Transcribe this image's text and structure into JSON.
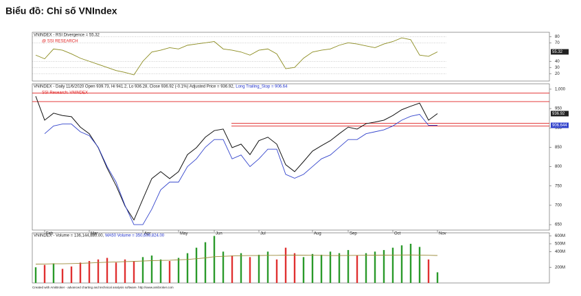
{
  "title": "Biểu đồ: Chỉ số VNIndex",
  "footer": "Created with AmiBroker - advanced charting and technical analysis software. http://www.amibroker.com",
  "chart_data": [
    {
      "type": "line",
      "title": "VNINDEX - RSI Divergence = 55.32",
      "annotation": "@ SSI RESEARCH",
      "series": [
        {
          "color": "#8b8b1e",
          "values": [
            50,
            44,
            60,
            58,
            52,
            45,
            40,
            35,
            30,
            25,
            22,
            18,
            40,
            55,
            58,
            62,
            60,
            66,
            68,
            70,
            72,
            60,
            58,
            55,
            50,
            58,
            60,
            52,
            28,
            30,
            45,
            55,
            58,
            60,
            66,
            70,
            68,
            65,
            62,
            68,
            72,
            78,
            75,
            50,
            48,
            55.32
          ]
        }
      ],
      "ylim": [
        8,
        87
      ],
      "yticks": [
        20,
        30,
        40,
        70,
        80
      ],
      "grid": true
    },
    {
      "type": "line",
      "title": "VNINDEX - Daily 11/6/2020 Open 939.73, Hi 941.2, Lo 936.28, Close 936.92 (-0.1%) Adjusted Price = 936.92,",
      "subtitle": "Long Trailing_Stop = 906.64",
      "annotation": "SSI Research: VNINDEX",
      "categories": [
        null,
        "Feb",
        null,
        null,
        null,
        null,
        "Mar",
        null,
        null,
        null,
        null,
        null,
        "Apr",
        null,
        null,
        null,
        "May",
        null,
        null,
        null,
        "Jun",
        null,
        null,
        null,
        null,
        "Jul",
        null,
        null,
        null,
        null,
        null,
        "Aug",
        null,
        null,
        null,
        "Sep",
        null,
        null,
        null,
        null,
        "Oct",
        null,
        null,
        null,
        null,
        "Nov"
      ],
      "series": [
        {
          "color": "#111111",
          "values": [
            982,
            920,
            938,
            932,
            929,
            902,
            885,
            849,
            796,
            751,
            698,
            662,
            716,
            769,
            787,
            769,
            787,
            831,
            849,
            876,
            893,
            897,
            849,
            858,
            831,
            867,
            876,
            858,
            805,
            787,
            813,
            840,
            854,
            867,
            885,
            902,
            897,
            911,
            915,
            920,
            932,
            947,
            956,
            964,
            920,
            936.92
          ]
        },
        {
          "color": "#3344cc",
          "values": [
            null,
            885,
            905,
            910,
            910,
            890,
            880,
            850,
            800,
            760,
            700,
            650,
            650,
            690,
            740,
            760,
            760,
            800,
            820,
            850,
            870,
            870,
            820,
            830,
            800,
            820,
            845,
            845,
            780,
            770,
            780,
            800,
            820,
            830,
            850,
            870,
            870,
            885,
            890,
            895,
            905,
            920,
            930,
            935,
            906.644,
            906.644
          ]
        }
      ],
      "hlines": {
        "color": "#e02020",
        "values": [
          990,
          968,
          912,
          905
        ]
      },
      "ylim": [
        636,
        1014
      ],
      "yticks": [
        650,
        700,
        750,
        800,
        850,
        900,
        950,
        {
          "value": 1000,
          "label": "1,000"
        }
      ]
    },
    {
      "type": "bar",
      "title": "VNINDEX - Volume = 136,144,880.00,",
      "subtitle": "MA50 Volume = 350,609,824.00",
      "up_color": "#2a9a2a",
      "down_color": "#e03030",
      "series": [
        {
          "values": [
            200000000,
            230000000,
            250000000,
            180000000,
            210000000,
            260000000,
            280000000,
            300000000,
            320000000,
            260000000,
            300000000,
            280000000,
            330000000,
            350000000,
            300000000,
            280000000,
            320000000,
            380000000,
            450000000,
            520000000,
            600000000,
            400000000,
            350000000,
            380000000,
            330000000,
            360000000,
            400000000,
            300000000,
            450000000,
            380000000,
            330000000,
            370000000,
            360000000,
            400000000,
            380000000,
            420000000,
            350000000,
            380000000,
            400000000,
            420000000,
            450000000,
            480000000,
            500000000,
            460000000,
            300000000,
            136144880
          ]
        },
        {
          "type": "line",
          "color": "#9a8a3a",
          "values": [
            240000000,
            242000000,
            245000000,
            245000000,
            247000000,
            250000000,
            255000000,
            260000000,
            265000000,
            268000000,
            272000000,
            275000000,
            280000000,
            285000000,
            288000000,
            290000000,
            295000000,
            300000000,
            310000000,
            320000000,
            335000000,
            340000000,
            345000000,
            348000000,
            350000000,
            350000000,
            352000000,
            352000000,
            355000000,
            355000000,
            354000000,
            353000000,
            352000000,
            350000000,
            350000000,
            351000000,
            352000000,
            353000000,
            354000000,
            355000000,
            356000000,
            357000000,
            358000000,
            356000000,
            353000000,
            350609824
          ]
        }
      ],
      "ylim": [
        0,
        640000000
      ],
      "yticks": [
        {
          "value": 200000000,
          "label": "200M"
        },
        {
          "value": 400000000,
          "label": "400M"
        },
        {
          "value": 500000000,
          "label": "500M"
        },
        {
          "value": 600000000,
          "label": "600M"
        }
      ]
    }
  ]
}
